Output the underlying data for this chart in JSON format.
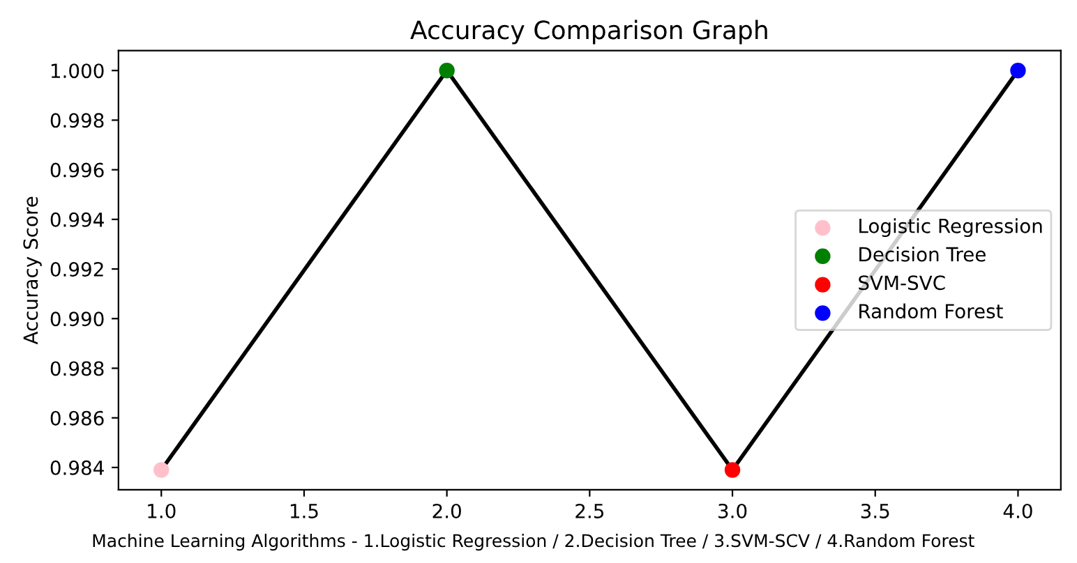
{
  "chart_data": {
    "type": "line",
    "title": "Accuracy Comparison Graph",
    "xlabel": "Machine Learning Algorithms - 1.Logistic Regression / 2.Decision Tree / 3.SVM-SCV / 4.Random Forest",
    "ylabel": "Accuracy Score",
    "series": [
      {
        "color": "#000000",
        "x": [
          1,
          2,
          3,
          4
        ],
        "values": [
          0.9839,
          1.0,
          0.9839,
          1.0
        ]
      },
      {
        "type": "scatter",
        "name": "Logistic Regression",
        "color": "#ffc0cb",
        "x": [
          1
        ],
        "values": [
          0.9839
        ]
      },
      {
        "type": "scatter",
        "name": "Decision Tree",
        "color": "#008000",
        "x": [
          2
        ],
        "values": [
          1.0
        ]
      },
      {
        "type": "scatter",
        "name": "SVM-SVC",
        "color": "#ff0000",
        "x": [
          3
        ],
        "values": [
          0.9839
        ]
      },
      {
        "type": "scatter",
        "name": "Random Forest",
        "color": "#0000ff",
        "x": [
          4
        ],
        "values": [
          1.0
        ]
      }
    ],
    "xlim": [
      0.85,
      4.15
    ],
    "xticks": [
      {
        "value": 1,
        "label": "1.0"
      },
      1.5,
      {
        "value": 2,
        "label": "2.0"
      },
      2.5,
      {
        "value": 3,
        "label": "3.0"
      },
      3.5,
      {
        "value": 4,
        "label": "4.0"
      }
    ],
    "ylim": [
      0.9831,
      1.0008
    ],
    "yticks": [
      {
        "value": 0.984,
        "label": "0.984"
      },
      {
        "value": 0.986,
        "label": "0.986"
      },
      {
        "value": 0.988,
        "label": "0.988"
      },
      {
        "value": 0.99,
        "label": "0.990"
      },
      {
        "value": 0.992,
        "label": "0.992"
      },
      {
        "value": 0.994,
        "label": "0.994"
      },
      {
        "value": 0.996,
        "label": "0.996"
      },
      {
        "value": 0.998,
        "label": "0.998"
      },
      {
        "value": 1.0,
        "label": "1.000"
      }
    ],
    "legend": "right",
    "grid": false
  }
}
